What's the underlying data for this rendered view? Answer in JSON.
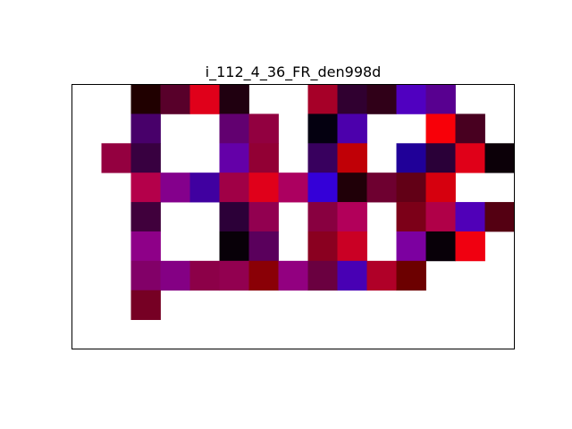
{
  "chart_data": {
    "type": "heatmap",
    "title": "i_112_4_36_FR_den998d",
    "xlabel": "",
    "ylabel": "",
    "grid": false,
    "n_rows": 9,
    "n_cols": 15,
    "empty_color": "#ffffff",
    "cells": [
      [
        null,
        null,
        "#200000",
        "#58002a",
        "#e0001a",
        "#200010",
        null,
        null,
        "#a60028",
        "#300030",
        "#300018",
        "#5000c0",
        "#580090",
        null,
        null
      ],
      [
        null,
        null,
        "#48006a",
        null,
        null,
        "#620070",
        "#920040",
        null,
        "#040010",
        "#4c00ac",
        null,
        null,
        "#f80008",
        "#480020",
        null
      ],
      [
        null,
        "#940040",
        "#380040",
        null,
        null,
        "#6400a8",
        "#920034",
        null,
        "#38005e",
        "#c00006",
        null,
        "#200098",
        "#2a0038",
        "#e00018",
        "#0c0008"
      ],
      [
        null,
        null,
        "#b4004a",
        "#84008c",
        "#4000a0",
        "#a00046",
        "#e0001a",
        "#ac0060",
        "#3400d8",
        "#200008",
        "#6e0030",
        "#620016",
        "#d6000e",
        null,
        null
      ],
      [
        null,
        null,
        "#40003c",
        null,
        null,
        "#2c0038",
        "#920050",
        null,
        "#880040",
        "#b2005a",
        null,
        "#7c0018",
        "#b00048",
        "#5000b8",
        "#540012"
      ],
      [
        null,
        null,
        "#8e0088",
        null,
        null,
        "#080008",
        "#5a005c",
        null,
        "#8a0020",
        "#ca0024",
        null,
        "#7c00a0",
        "#080008",
        "#f00010",
        null
      ],
      [
        null,
        null,
        "#820068",
        "#840084",
        "#8c0048",
        "#920050",
        "#8a0006",
        "#920080",
        "#6a0040",
        "#4800b4",
        "#b00028",
        "#6c0000",
        null,
        null,
        null
      ],
      [
        null,
        null,
        "#760024",
        null,
        null,
        null,
        null,
        null,
        null,
        null,
        null,
        null,
        null,
        null,
        null
      ],
      [
        null,
        null,
        null,
        null,
        null,
        null,
        null,
        null,
        null,
        null,
        null,
        null,
        null,
        null,
        null
      ]
    ]
  }
}
